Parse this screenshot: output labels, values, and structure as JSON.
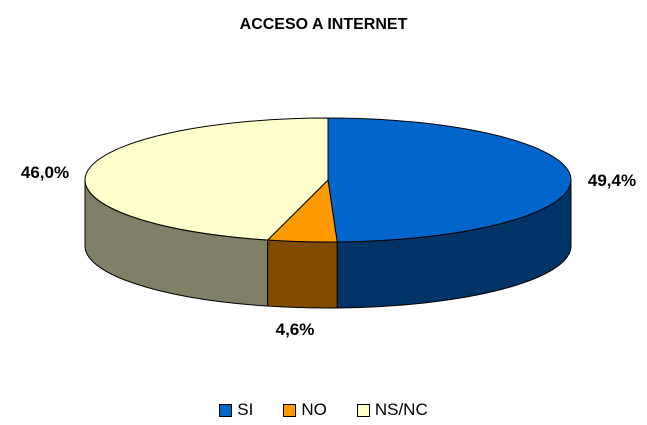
{
  "chart_data": {
    "type": "pie",
    "title": "ACCESO A INTERNET",
    "categories": [
      "SI",
      "NO",
      "NS/NC"
    ],
    "values": [
      49.4,
      4.6,
      46.0
    ],
    "labels": [
      "49,4%",
      "4,6%",
      "46,0%"
    ],
    "colors": {
      "top": [
        "#0066CC",
        "#FF9900",
        "#FFFFCC"
      ],
      "side": [
        "#003366",
        "#804C00",
        "#808066"
      ]
    },
    "legend_position": "bottom"
  }
}
